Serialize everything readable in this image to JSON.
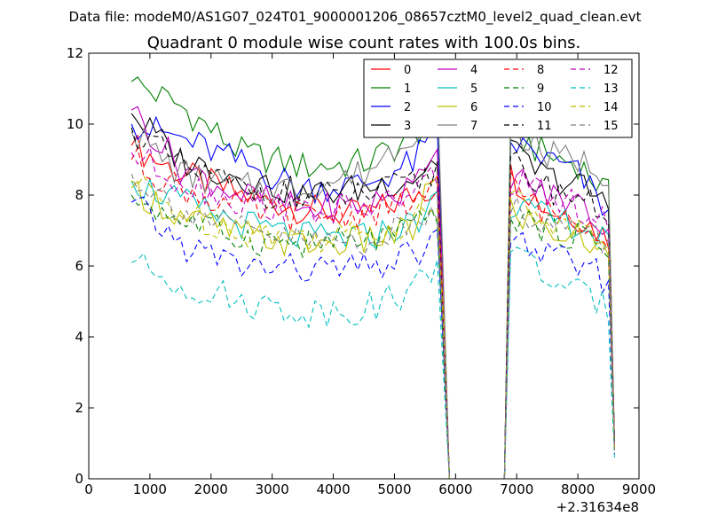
{
  "header": "Data file: modeM0/AS1G07_024T01_9000001206_08657cztM0_level2_quad_clean.evt",
  "chart_data": {
    "type": "line",
    "title": "Quadrant 0 module wise count rates with 100.0s bins.",
    "xlabel": "",
    "ylabel": "",
    "x_offset_label": "+2.31634e8",
    "xlim": [
      0,
      9000
    ],
    "ylim": [
      0,
      12
    ],
    "xticks": [
      0,
      1000,
      2000,
      3000,
      4000,
      5000,
      6000,
      7000,
      8000,
      9000
    ],
    "yticks": [
      0,
      2,
      4,
      6,
      8,
      10,
      12
    ],
    "grid": false,
    "legend": {
      "placement": "top-right",
      "columns": 4
    },
    "series": [
      {
        "name": "0",
        "color": "#ff0000",
        "dash": "solid",
        "levels": [
          9.4,
          8.6,
          8.0,
          7.6,
          7.4,
          8.0,
          8.3,
          0,
          0,
          8.6,
          7.6,
          7.4,
          6.8,
          1.0
        ]
      },
      {
        "name": "1",
        "color": "#008000",
        "dash": "solid",
        "levels": [
          11.2,
          10.5,
          9.2,
          8.8,
          8.9,
          9.6,
          10.5,
          0,
          0,
          9.8,
          9.1,
          8.9,
          8.0,
          1.0
        ]
      },
      {
        "name": "2",
        "color": "#0000ff",
        "dash": "solid",
        "levels": [
          10.0,
          9.6,
          8.9,
          8.2,
          8.3,
          8.9,
          9.8,
          0,
          0,
          9.5,
          9.0,
          8.6,
          7.5,
          1.0
        ]
      },
      {
        "name": "3",
        "color": "#000000",
        "dash": "solid",
        "levels": [
          10.3,
          9.0,
          8.5,
          8.0,
          8.2,
          8.5,
          9.0,
          0,
          0,
          9.2,
          8.5,
          8.3,
          7.7,
          1.0
        ]
      },
      {
        "name": "4",
        "color": "#bf00bf",
        "dash": "solid",
        "levels": [
          10.4,
          8.8,
          8.0,
          7.6,
          7.7,
          8.2,
          9.6,
          0,
          0,
          8.6,
          8.0,
          7.8,
          7.0,
          1.0
        ]
      },
      {
        "name": "5",
        "color": "#00bfbf",
        "dash": "solid",
        "levels": [
          8.4,
          7.8,
          7.2,
          6.8,
          6.8,
          7.2,
          7.8,
          0,
          0,
          7.8,
          7.3,
          7.2,
          6.6,
          0.8
        ]
      },
      {
        "name": "6",
        "color": "#bfbf00",
        "dash": "solid",
        "levels": [
          8.2,
          7.4,
          6.9,
          6.6,
          6.7,
          7.0,
          8.8,
          0,
          0,
          7.6,
          7.0,
          6.8,
          6.3,
          0.8
        ]
      },
      {
        "name": "7",
        "color": "#808080",
        "dash": "solid",
        "levels": [
          9.8,
          8.6,
          8.2,
          8.2,
          8.6,
          9.8,
          10.8,
          0,
          0,
          10.0,
          9.1,
          9.0,
          8.6,
          1.0
        ]
      },
      {
        "name": "8",
        "color": "#ff0000",
        "dash": "dashed",
        "levels": [
          9.0,
          8.2,
          7.6,
          7.4,
          7.5,
          7.8,
          8.2,
          0,
          0,
          8.3,
          7.5,
          7.4,
          6.9,
          0.9
        ]
      },
      {
        "name": "9",
        "color": "#008000",
        "dash": "dashed",
        "levels": [
          8.0,
          7.3,
          6.8,
          6.6,
          6.7,
          7.0,
          7.6,
          0,
          0,
          7.5,
          7.0,
          6.9,
          6.4,
          0.8
        ]
      },
      {
        "name": "10",
        "color": "#0000ff",
        "dash": "dashed",
        "levels": [
          7.8,
          6.6,
          6.0,
          5.9,
          5.9,
          6.3,
          6.8,
          0,
          0,
          6.8,
          6.3,
          6.0,
          5.6,
          0.7
        ]
      },
      {
        "name": "11",
        "color": "#000000",
        "dash": "dashed",
        "levels": [
          9.9,
          8.8,
          8.2,
          7.9,
          8.0,
          8.3,
          8.7,
          0,
          0,
          8.9,
          8.2,
          8.0,
          7.4,
          1.0
        ]
      },
      {
        "name": "12",
        "color": "#bf00bf",
        "dash": "dashed",
        "levels": [
          9.2,
          8.4,
          7.8,
          7.6,
          7.6,
          8.0,
          8.6,
          0,
          0,
          8.4,
          7.9,
          7.7,
          7.1,
          0.9
        ]
      },
      {
        "name": "13",
        "color": "#00bfbf",
        "dash": "dashed",
        "levels": [
          6.1,
          5.5,
          5.0,
          4.7,
          4.8,
          5.3,
          6.2,
          0,
          0,
          6.5,
          5.7,
          5.2,
          4.8,
          0.6
        ]
      },
      {
        "name": "14",
        "color": "#bfbf00",
        "dash": "dashed",
        "levels": [
          8.4,
          7.5,
          7.0,
          6.8,
          6.9,
          7.3,
          7.9,
          0,
          0,
          8.0,
          7.3,
          7.0,
          6.5,
          0.8
        ]
      },
      {
        "name": "15",
        "color": "#808080",
        "dash": "dashed",
        "levels": [
          8.6,
          7.6,
          7.0,
          6.7,
          6.7,
          7.1,
          7.7,
          0,
          0,
          7.7,
          7.2,
          7.0,
          6.6,
          0.8
        ]
      }
    ],
    "x_anchors": [
      700,
      1500,
      2500,
      3500,
      4500,
      5300,
      5700,
      5900,
      6800,
      6900,
      7500,
      8000,
      8500,
      8600
    ]
  }
}
